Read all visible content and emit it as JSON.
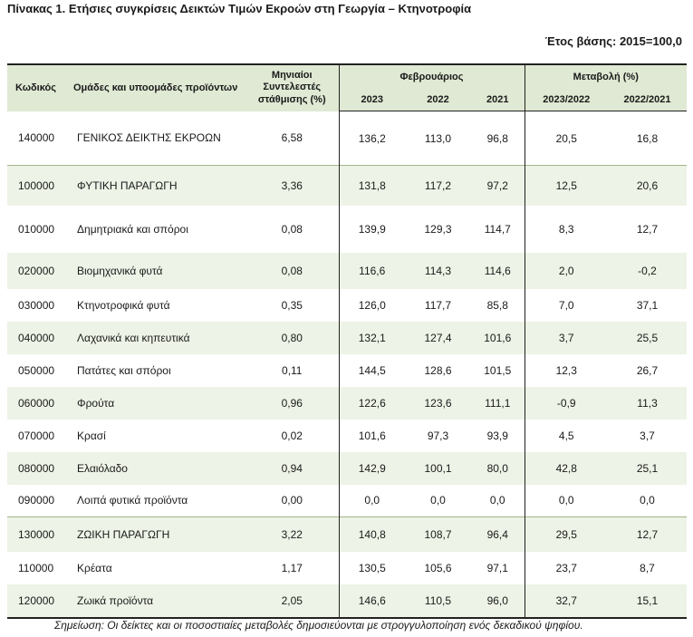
{
  "title": "Πίνακας 1. Ετήσιες συγκρίσεις Δεικτών Τιμών Εκροών στη Γεωργία – Κτηνοτροφία",
  "base_year": "Έτος βάσης: 2015=100,0",
  "header": {
    "code": "Κωδικός",
    "group": "Ομάδες και υποομάδες προϊόντων",
    "weight_line1": "Μηνιαίοι",
    "weight_line2": "Συντελεστές",
    "weight_line3": "στάθμισης (%)",
    "month": "Φεβρουάριος",
    "change": "Μεταβολή (%)",
    "y2023": "2023",
    "y2022": "2022",
    "y2021": "2021",
    "c1": "2023/2022",
    "c2": "2022/2021"
  },
  "rows": [
    {
      "code": "140000",
      "name": "ΓΕΝΙΚΟΣ ΔΕΙΚΤΗΣ ΕΚΡΟΩΝ",
      "weight": "6,58",
      "y2023": "136,2",
      "y2022": "113,0",
      "y2021": "96,8",
      "c1": "20,5",
      "c2": "16,8"
    },
    {
      "code": "100000",
      "name": "ΦΥΤΙΚΗ ΠΑΡΑΓΩΓΗ",
      "weight": "3,36",
      "y2023": "131,8",
      "y2022": "117,2",
      "y2021": "97,2",
      "c1": "12,5",
      "c2": "20,6"
    },
    {
      "code": "010000",
      "name": "Δημητριακά και σπόροι",
      "weight": "0,08",
      "y2023": "139,9",
      "y2022": "129,3",
      "y2021": "114,7",
      "c1": "8,3",
      "c2": "12,7"
    },
    {
      "code": "020000",
      "name": "Βιομηχανικά φυτά",
      "weight": "0,08",
      "y2023": "116,6",
      "y2022": "114,3",
      "y2021": "114,6",
      "c1": "2,0",
      "c2": "-0,2"
    },
    {
      "code": "030000",
      "name": "Κτηνοτροφικά φυτά",
      "weight": "0,35",
      "y2023": "126,0",
      "y2022": "117,7",
      "y2021": "85,8",
      "c1": "7,0",
      "c2": "37,1"
    },
    {
      "code": "040000",
      "name": "Λαχανικά και κηπευτικά",
      "weight": "0,80",
      "y2023": "132,1",
      "y2022": "127,4",
      "y2021": "101,6",
      "c1": "3,7",
      "c2": "25,5"
    },
    {
      "code": "050000",
      "name": "Πατάτες και σπόροι",
      "weight": "0,11",
      "y2023": "144,5",
      "y2022": "128,6",
      "y2021": "101,5",
      "c1": "12,3",
      "c2": "26,7"
    },
    {
      "code": "060000",
      "name": "Φρούτα",
      "weight": "0,96",
      "y2023": "122,6",
      "y2022": "123,6",
      "y2021": "111,1",
      "c1": "-0,9",
      "c2": "11,3"
    },
    {
      "code": "070000",
      "name": "Κρασί",
      "weight": "0,02",
      "y2023": "101,6",
      "y2022": "97,3",
      "y2021": "93,9",
      "c1": "4,5",
      "c2": "3,7"
    },
    {
      "code": "080000",
      "name": "Ελαιόλαδο",
      "weight": "0,94",
      "y2023": "142,9",
      "y2022": "100,1",
      "y2021": "80,0",
      "c1": "42,8",
      "c2": "25,1"
    },
    {
      "code": "090000",
      "name": "Λοιπά φυτικά προϊόντα",
      "weight": "0,00",
      "y2023": "0,0",
      "y2022": "0,0",
      "y2021": "0,0",
      "c1": "0,0",
      "c2": "0,0"
    },
    {
      "code": "130000",
      "name": "ΖΩΙΚΗ ΠΑΡΑΓΩΓΗ",
      "weight": "3,22",
      "y2023": "140,8",
      "y2022": "108,7",
      "y2021": "96,4",
      "c1": "29,5",
      "c2": "12,7"
    },
    {
      "code": "110000",
      "name": "Κρέατα",
      "weight": "1,17",
      "y2023": "130,5",
      "y2022": "105,6",
      "y2021": "97,1",
      "c1": "23,7",
      "c2": "8,7"
    },
    {
      "code": "120000",
      "name": "Ζωικά προϊόντα",
      "weight": "2,05",
      "y2023": "146,6",
      "y2022": "110,5",
      "y2021": "96,0",
      "c1": "32,7",
      "c2": "15,1"
    }
  ],
  "note": "Σημείωση: Οι δείκτες και οι ποσοστιαίες μεταβολές δημοσιεύονται με στρογγυλοποίηση ενός δεκαδικού ψηφίου."
}
